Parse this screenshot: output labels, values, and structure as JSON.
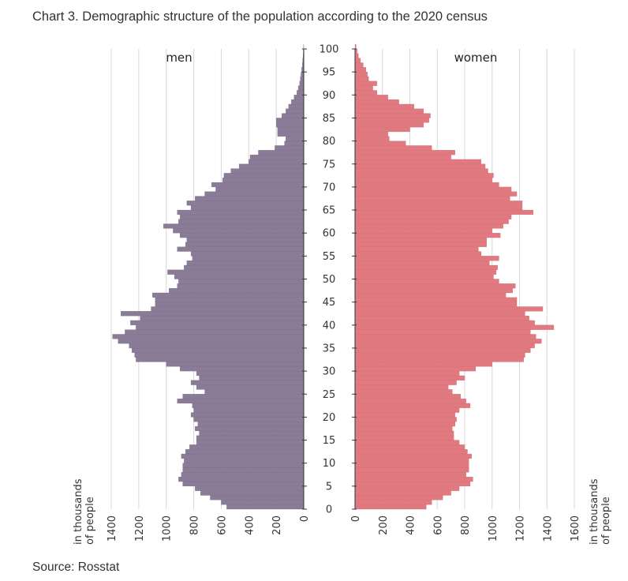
{
  "title": "Chart 3. Demographic structure of the population according to the 2020 census",
  "source": "Source: Rosstat",
  "chart_data": {
    "type": "bar",
    "orientation": "horizontal-population-pyramid",
    "men_label": "men",
    "women_label": "women",
    "left_unit_label": [
      "in thousands",
      "of people"
    ],
    "right_unit_label": [
      "in thousands",
      "of people"
    ],
    "age_ticks": [
      "0",
      "5",
      "10",
      "15",
      "20",
      "25",
      "30",
      "35",
      "40",
      "45",
      "50",
      "55",
      "60",
      "65",
      "70",
      "75",
      "80",
      "85",
      "90",
      "95",
      "100"
    ],
    "men_ticks": [
      "1400",
      "1200",
      "1000",
      "800",
      "600",
      "400",
      "200",
      "0"
    ],
    "women_ticks": [
      "0",
      "200",
      "400",
      "600",
      "800",
      "1000",
      "1200",
      "1400",
      "1600"
    ],
    "men_xlim": [
      0,
      1400
    ],
    "women_xlim": [
      0,
      1600
    ],
    "colors": {
      "men": "#8a7b97",
      "women": "#e07a80",
      "grid": "#d8d8d8",
      "axis": "#333333"
    },
    "ages": [
      0,
      1,
      2,
      3,
      4,
      5,
      6,
      7,
      8,
      9,
      10,
      11,
      12,
      13,
      14,
      15,
      16,
      17,
      18,
      19,
      20,
      21,
      22,
      23,
      24,
      25,
      26,
      27,
      28,
      29,
      30,
      31,
      32,
      33,
      34,
      35,
      36,
      37,
      38,
      39,
      40,
      41,
      42,
      43,
      44,
      45,
      46,
      47,
      48,
      49,
      50,
      51,
      52,
      53,
      54,
      55,
      56,
      57,
      58,
      59,
      60,
      61,
      62,
      63,
      64,
      65,
      66,
      67,
      68,
      69,
      70,
      71,
      72,
      73,
      74,
      75,
      76,
      77,
      78,
      79,
      80,
      81,
      82,
      83,
      84,
      85,
      86,
      87,
      88,
      89,
      90,
      91,
      92,
      93,
      94,
      95,
      96,
      97,
      98,
      99,
      100
    ],
    "men": [
      560,
      600,
      680,
      750,
      790,
      880,
      910,
      890,
      880,
      880,
      870,
      890,
      860,
      830,
      780,
      780,
      760,
      790,
      770,
      800,
      820,
      800,
      810,
      920,
      880,
      720,
      780,
      820,
      760,
      780,
      900,
      1000,
      1220,
      1230,
      1250,
      1270,
      1350,
      1390,
      1300,
      1220,
      1260,
      1190,
      1330,
      1110,
      1080,
      1080,
      1100,
      980,
      920,
      910,
      940,
      990,
      870,
      850,
      810,
      820,
      920,
      860,
      850,
      900,
      950,
      1020,
      910,
      900,
      920,
      820,
      850,
      790,
      720,
      640,
      670,
      590,
      580,
      530,
      470,
      400,
      390,
      330,
      210,
      140,
      130,
      190,
      190,
      200,
      200,
      160,
      130,
      110,
      90,
      70,
      50,
      40,
      30,
      25,
      20,
      15,
      10,
      8,
      5,
      3,
      1
    ],
    "women": [
      520,
      560,
      640,
      700,
      760,
      840,
      860,
      810,
      830,
      830,
      830,
      850,
      820,
      800,
      760,
      720,
      720,
      710,
      730,
      740,
      730,
      760,
      840,
      810,
      770,
      710,
      680,
      740,
      800,
      760,
      880,
      1000,
      1230,
      1240,
      1280,
      1310,
      1360,
      1320,
      1280,
      1450,
      1310,
      1270,
      1240,
      1370,
      1180,
      1180,
      1100,
      1150,
      1170,
      1050,
      1010,
      1030,
      1040,
      980,
      1050,
      920,
      900,
      960,
      960,
      1060,
      1000,
      1080,
      1120,
      1140,
      1300,
      1220,
      1220,
      1130,
      1180,
      1140,
      1050,
      1000,
      1010,
      970,
      950,
      920,
      700,
      730,
      560,
      370,
      250,
      240,
      400,
      500,
      540,
      550,
      500,
      430,
      320,
      240,
      160,
      130,
      160,
      100,
      90,
      80,
      60,
      40,
      25,
      15,
      8
    ]
  }
}
